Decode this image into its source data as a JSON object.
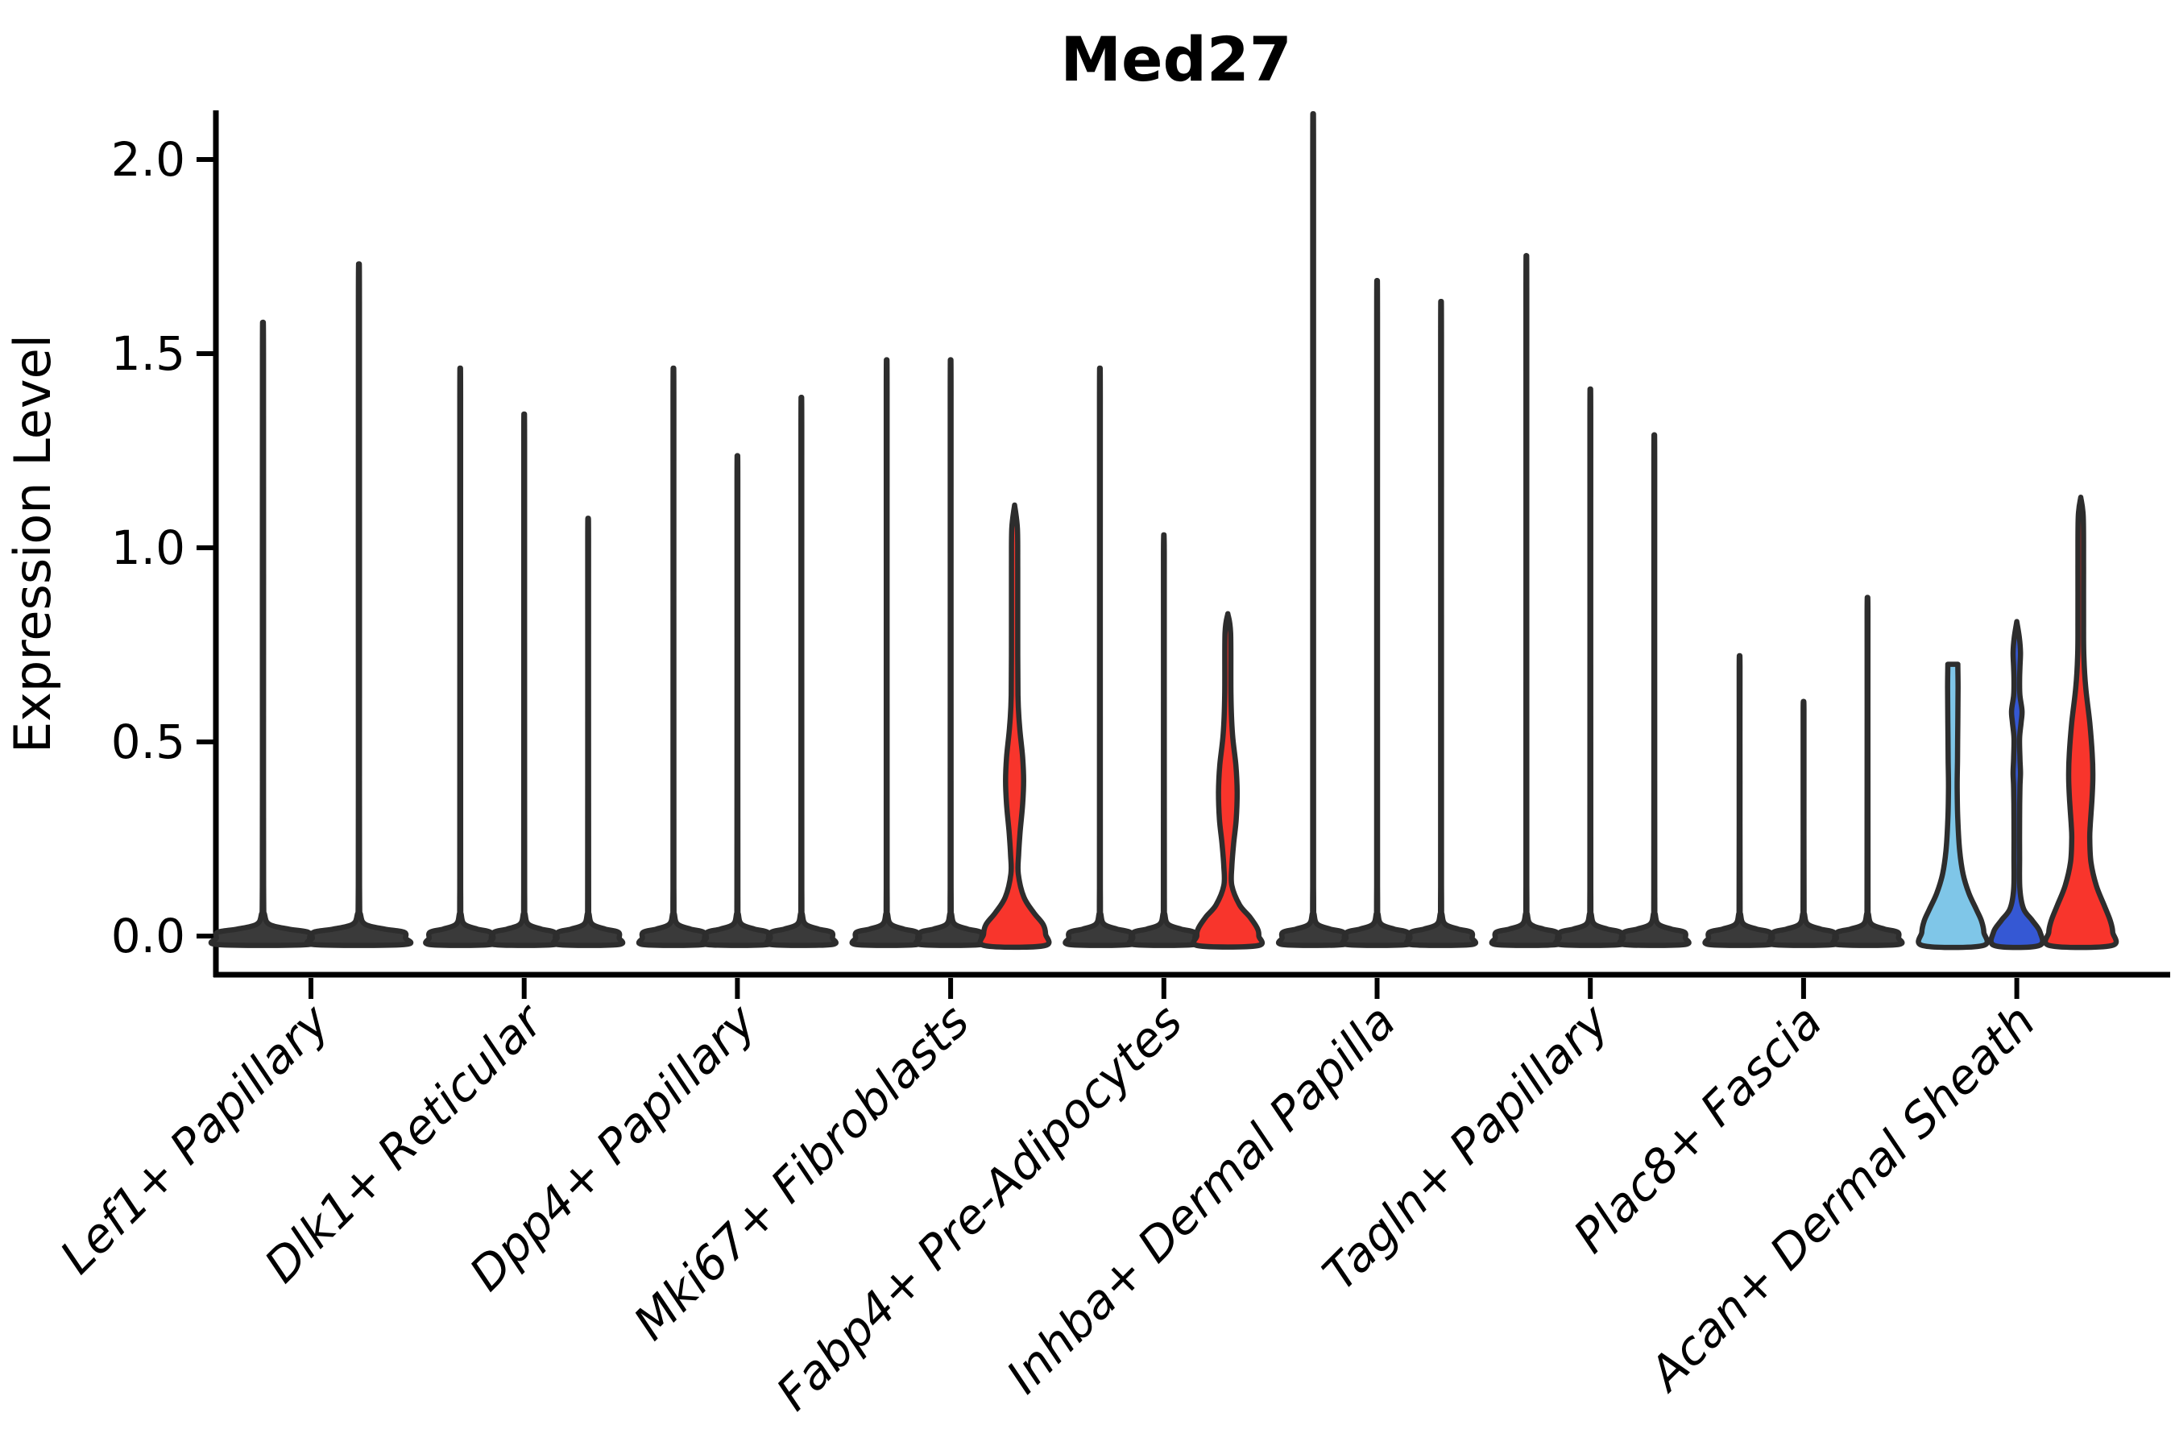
{
  "title": "Med27",
  "chart_data": {
    "type": "violin",
    "title": "Med27",
    "ylabel": "Expression Level",
    "xlabel": "",
    "grid": false,
    "legend": "none",
    "ylim": [
      -0.07,
      2.12
    ],
    "yticks": [
      0.0,
      0.5,
      1.0,
      1.5,
      2.0
    ],
    "ytick_labels": [
      "0.0",
      "0.5",
      "1.0",
      "1.5",
      "2.0"
    ],
    "categories": [
      "Lef1+ Papillary",
      "Dlk1+ Reticular",
      "Dpp4+ Papillary",
      "Mki67+ Fibroblasts",
      "Fabp4+ Pre-Adipocytes",
      "Inhba+ Dermal Papilla",
      "Tagln+ Papillary",
      "Plac8+ Fascia",
      "Acan+ Dermal Sheath"
    ],
    "colors": {
      "spike_fill": "#3a3a3a",
      "outline": "#2d2d2d",
      "red": "#f8352c",
      "light_blue": "#7fc6e8",
      "dark_blue": "#3558d4",
      "axis": "#000000"
    },
    "groups": [
      {
        "category": "Lef1+ Papillary",
        "violins": [
          {
            "max": 1.51,
            "shape": "spike",
            "color": "spike_fill"
          },
          {
            "max": 1.65,
            "shape": "spike",
            "color": "spike_fill"
          }
        ]
      },
      {
        "category": "Dlk1+ Reticular",
        "violins": [
          {
            "max": 1.4,
            "shape": "spike",
            "color": "spike_fill"
          },
          {
            "max": 1.29,
            "shape": "spike",
            "color": "spike_fill"
          },
          {
            "max": 1.04,
            "shape": "spike",
            "color": "spike_fill"
          }
        ]
      },
      {
        "category": "Dpp4+ Papillary",
        "violins": [
          {
            "max": 1.4,
            "shape": "spike",
            "color": "spike_fill"
          },
          {
            "max": 1.19,
            "shape": "spike",
            "color": "spike_fill"
          },
          {
            "max": 1.33,
            "shape": "spike",
            "color": "spike_fill"
          }
        ]
      },
      {
        "category": "Mki67+ Fibroblasts",
        "violins": [
          {
            "max": 1.42,
            "shape": "spike",
            "color": "spike_fill"
          },
          {
            "max": 1.42,
            "shape": "spike",
            "color": "spike_fill"
          },
          {
            "max": 1.11,
            "shape": "red_mki67",
            "color": "red"
          }
        ]
      },
      {
        "category": "Fabp4+ Pre-Adipocytes",
        "violins": [
          {
            "max": 1.4,
            "shape": "spike",
            "color": "spike_fill"
          },
          {
            "max": 1.0,
            "shape": "spike",
            "color": "spike_fill"
          },
          {
            "max": 0.83,
            "shape": "red_fabp4",
            "color": "red"
          }
        ]
      },
      {
        "category": "Inhba+ Dermal Papilla",
        "violins": [
          {
            "max": 2.01,
            "shape": "spike",
            "color": "spike_fill"
          },
          {
            "max": 1.61,
            "shape": "spike",
            "color": "spike_fill"
          },
          {
            "max": 1.56,
            "shape": "spike",
            "color": "spike_fill"
          }
        ]
      },
      {
        "category": "Tagln+ Papillary",
        "violins": [
          {
            "max": 1.67,
            "shape": "spike",
            "color": "spike_fill"
          },
          {
            "max": 1.35,
            "shape": "spike",
            "color": "spike_fill"
          },
          {
            "max": 1.24,
            "shape": "spike",
            "color": "spike_fill"
          }
        ]
      },
      {
        "category": "Plac8+ Fascia",
        "violins": [
          {
            "max": 0.71,
            "shape": "spike",
            "color": "spike_fill"
          },
          {
            "max": 0.6,
            "shape": "spike",
            "color": "spike_fill"
          },
          {
            "max": 0.85,
            "shape": "spike",
            "color": "spike_fill"
          }
        ]
      },
      {
        "category": "Acan+ Dermal Sheath",
        "violins": [
          {
            "max": 0.7,
            "shape": "lightblue_acan",
            "color": "light_blue"
          },
          {
            "max": 0.81,
            "shape": "darkblue_acan",
            "color": "dark_blue"
          },
          {
            "max": 1.13,
            "shape": "red_acan",
            "color": "red"
          }
        ]
      }
    ],
    "profiles": {
      "red_mki67": [
        [
          1.11,
          0
        ],
        [
          1.05,
          0.09
        ],
        [
          0.95,
          0.1
        ],
        [
          0.8,
          0.1
        ],
        [
          0.62,
          0.11
        ],
        [
          0.54,
          0.16
        ],
        [
          0.46,
          0.26
        ],
        [
          0.4,
          0.29
        ],
        [
          0.34,
          0.26
        ],
        [
          0.27,
          0.18
        ],
        [
          0.21,
          0.13
        ],
        [
          0.16,
          0.12
        ],
        [
          0.1,
          0.3
        ],
        [
          0.06,
          0.62
        ],
        [
          0.03,
          0.92
        ],
        [
          0.005,
          1.0
        ],
        [
          -0.025,
          0.95
        ]
      ],
      "red_fabp4": [
        [
          0.83,
          0
        ],
        [
          0.78,
          0.09
        ],
        [
          0.62,
          0.1
        ],
        [
          0.52,
          0.15
        ],
        [
          0.44,
          0.26
        ],
        [
          0.37,
          0.3
        ],
        [
          0.3,
          0.27
        ],
        [
          0.24,
          0.19
        ],
        [
          0.18,
          0.13
        ],
        [
          0.13,
          0.13
        ],
        [
          0.08,
          0.38
        ],
        [
          0.05,
          0.7
        ],
        [
          0.02,
          0.95
        ],
        [
          0.0,
          1.0
        ],
        [
          -0.025,
          0.95
        ]
      ],
      "lightblue_acan": [
        [
          0.7,
          0.16
        ],
        [
          0.64,
          0.17
        ],
        [
          0.55,
          0.16
        ],
        [
          0.45,
          0.15
        ],
        [
          0.38,
          0.14
        ],
        [
          0.3,
          0.16
        ],
        [
          0.22,
          0.22
        ],
        [
          0.16,
          0.33
        ],
        [
          0.11,
          0.52
        ],
        [
          0.07,
          0.75
        ],
        [
          0.04,
          0.92
        ],
        [
          0.01,
          1.0
        ],
        [
          -0.025,
          0.95
        ]
      ],
      "darkblue_acan": [
        [
          0.81,
          0
        ],
        [
          0.77,
          0.08
        ],
        [
          0.73,
          0.12
        ],
        [
          0.69,
          0.1
        ],
        [
          0.66,
          0.09
        ],
        [
          0.62,
          0.1
        ],
        [
          0.58,
          0.17
        ],
        [
          0.55,
          0.14
        ],
        [
          0.51,
          0.09
        ],
        [
          0.46,
          0.1
        ],
        [
          0.42,
          0.12
        ],
        [
          0.38,
          0.1
        ],
        [
          0.3,
          0.09
        ],
        [
          0.2,
          0.09
        ],
        [
          0.12,
          0.1
        ],
        [
          0.07,
          0.22
        ],
        [
          0.04,
          0.5
        ],
        [
          0.01,
          0.75
        ],
        [
          -0.025,
          0.7
        ]
      ],
      "red_acan": [
        [
          1.13,
          0
        ],
        [
          1.08,
          0.08
        ],
        [
          0.95,
          0.09
        ],
        [
          0.8,
          0.09
        ],
        [
          0.72,
          0.1
        ],
        [
          0.64,
          0.16
        ],
        [
          0.55,
          0.29
        ],
        [
          0.47,
          0.37
        ],
        [
          0.41,
          0.39
        ],
        [
          0.35,
          0.36
        ],
        [
          0.29,
          0.31
        ],
        [
          0.25,
          0.29
        ],
        [
          0.19,
          0.33
        ],
        [
          0.13,
          0.5
        ],
        [
          0.08,
          0.75
        ],
        [
          0.04,
          0.95
        ],
        [
          0.01,
          1.03
        ],
        [
          -0.025,
          0.98
        ]
      ],
      "spike": [
        [
          0.4,
          0.012
        ],
        [
          0.1,
          0.015
        ],
        [
          0.055,
          0.035
        ],
        [
          0.03,
          0.14
        ],
        [
          0.018,
          0.55
        ],
        [
          0.01,
          0.97
        ],
        [
          -0.005,
          1.0
        ],
        [
          -0.022,
          0.96
        ]
      ]
    }
  }
}
